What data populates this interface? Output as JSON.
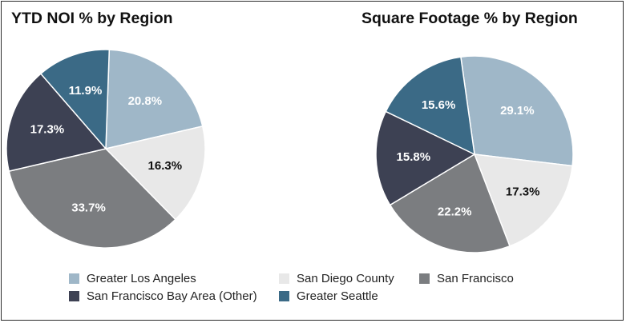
{
  "chart_data": [
    {
      "type": "pie",
      "title": "YTD NOI % by Region",
      "slices": [
        {
          "label": "Greater Los Angeles",
          "value": 20.8,
          "text": "20.8%",
          "color": "#9fb7c8",
          "text_color": "#ffffff"
        },
        {
          "label": "San Diego County",
          "value": 16.3,
          "text": "16.3%",
          "color": "#e8e8e8",
          "text_color": "#111111"
        },
        {
          "label": "San Francisco",
          "value": 33.7,
          "text": "33.7%",
          "color": "#7b7d80",
          "text_color": "#ffffff"
        },
        {
          "label": "San Francisco Bay Area (Other)",
          "value": 17.3,
          "text": "17.3%",
          "color": "#3d4153",
          "text_color": "#ffffff"
        },
        {
          "label": "Greater Seattle",
          "value": 11.9,
          "text": "11.9%",
          "color": "#3b6a86",
          "text_color": "#ffffff"
        }
      ]
    },
    {
      "type": "pie",
      "title": "Square Footage % by Region",
      "slices": [
        {
          "label": "Greater Los Angeles",
          "value": 29.1,
          "text": "29.1%",
          "color": "#9fb7c8",
          "text_color": "#ffffff"
        },
        {
          "label": "San Diego County",
          "value": 17.3,
          "text": "17.3%",
          "color": "#e8e8e8",
          "text_color": "#111111"
        },
        {
          "label": "San Francisco",
          "value": 22.2,
          "text": "22.2%",
          "color": "#7b7d80",
          "text_color": "#ffffff"
        },
        {
          "label": "San Francisco Bay Area (Other)",
          "value": 15.8,
          "text": "15.8%",
          "color": "#3d4153",
          "text_color": "#ffffff"
        },
        {
          "label": "Greater Seattle",
          "value": 15.6,
          "text": "15.6%",
          "color": "#3b6a86",
          "text_color": "#ffffff"
        }
      ]
    }
  ],
  "legend": [
    {
      "label": "Greater Los Angeles",
      "color": "#9fb7c8"
    },
    {
      "label": "San Diego County",
      "color": "#e8e8e8"
    },
    {
      "label": "San Francisco",
      "color": "#7b7d80"
    },
    {
      "label": "San Francisco Bay Area (Other)",
      "color": "#3d4153"
    },
    {
      "label": "Greater Seattle",
      "color": "#3b6a86"
    }
  ]
}
